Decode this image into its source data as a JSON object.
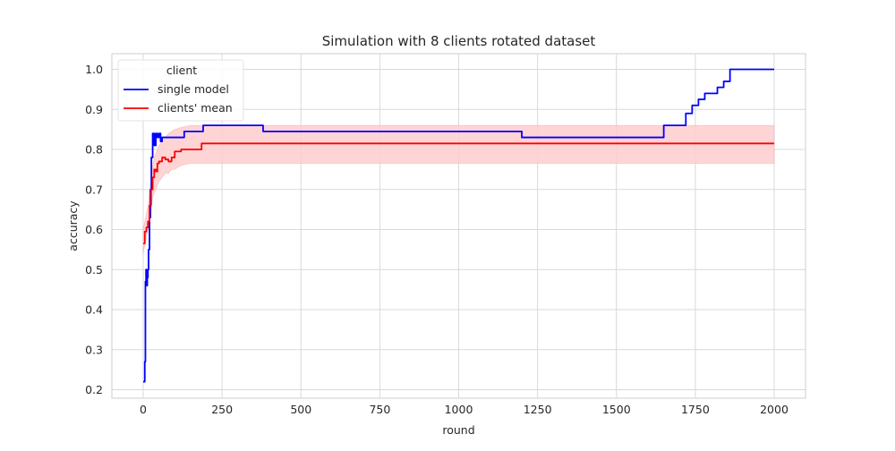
{
  "chart_data": {
    "type": "line",
    "title": "Simulation with 8 clients rotated dataset",
    "xlabel": "round",
    "ylabel": "accuracy",
    "xlim": [
      -50,
      2000
    ],
    "ylim": [
      0.2,
      1.0
    ],
    "xticks": [
      0,
      250,
      500,
      750,
      1000,
      1250,
      1500,
      1750,
      2000
    ],
    "yticks": [
      0.2,
      0.3,
      0.4,
      0.5,
      0.6,
      0.7,
      0.8,
      0.9,
      1.0
    ],
    "xtick_labels": [
      "0",
      "250",
      "500",
      "750",
      "1000",
      "1250",
      "1500",
      "1750",
      "2000"
    ],
    "ytick_labels": [
      "0.2",
      "0.3",
      "0.4",
      "0.5",
      "0.6",
      "0.7",
      "0.8",
      "0.9",
      "1.0"
    ],
    "grid": true,
    "legend": {
      "title": "client",
      "placement": "top-left"
    },
    "series": [
      {
        "name": "single model",
        "color": "#0000ff",
        "x": [
          0,
          5,
          7,
          9,
          11,
          13,
          15,
          17,
          20,
          23,
          26,
          30,
          35,
          40,
          45,
          50,
          55,
          60,
          70,
          80,
          100,
          130,
          160,
          190,
          250,
          300,
          380,
          700,
          900,
          1080,
          1200,
          1400,
          1640,
          1650,
          1700,
          1720,
          1740,
          1760,
          1780,
          1800,
          1820,
          1840,
          1860,
          1900,
          2000
        ],
        "values": [
          0.22,
          0.27,
          0.47,
          0.5,
          0.46,
          0.48,
          0.5,
          0.55,
          0.63,
          0.7,
          0.78,
          0.84,
          0.81,
          0.84,
          0.83,
          0.84,
          0.82,
          0.83,
          0.83,
          0.83,
          0.83,
          0.845,
          0.845,
          0.86,
          0.86,
          0.86,
          0.845,
          0.845,
          0.845,
          0.845,
          0.83,
          0.83,
          0.83,
          0.86,
          0.86,
          0.89,
          0.91,
          0.925,
          0.94,
          0.94,
          0.955,
          0.97,
          1.0,
          1.0,
          1.0
        ]
      },
      {
        "name": "clients' mean",
        "color": "#ff0000",
        "band_color": "#ffcccc",
        "x": [
          0,
          5,
          10,
          15,
          20,
          25,
          30,
          35,
          40,
          45,
          50,
          60,
          70,
          80,
          90,
          100,
          120,
          150,
          185,
          200,
          300,
          500,
          800,
          1000,
          1200,
          1500,
          1750,
          2000
        ],
        "values": [
          0.565,
          0.595,
          0.605,
          0.62,
          0.66,
          0.7,
          0.73,
          0.75,
          0.745,
          0.765,
          0.77,
          0.78,
          0.775,
          0.77,
          0.78,
          0.795,
          0.8,
          0.8,
          0.815,
          0.815,
          0.815,
          0.815,
          0.815,
          0.815,
          0.815,
          0.815,
          0.815,
          0.815
        ],
        "lower": [
          0.54,
          0.56,
          0.58,
          0.6,
          0.62,
          0.65,
          0.68,
          0.69,
          0.7,
          0.71,
          0.72,
          0.73,
          0.74,
          0.74,
          0.75,
          0.75,
          0.76,
          0.765,
          0.765,
          0.765,
          0.765,
          0.765,
          0.765,
          0.765,
          0.765,
          0.765,
          0.765,
          0.765
        ],
        "upper": [
          0.6,
          0.62,
          0.64,
          0.66,
          0.69,
          0.73,
          0.76,
          0.78,
          0.79,
          0.8,
          0.81,
          0.82,
          0.83,
          0.84,
          0.845,
          0.85,
          0.855,
          0.86,
          0.86,
          0.86,
          0.86,
          0.86,
          0.86,
          0.86,
          0.86,
          0.86,
          0.86,
          0.86
        ]
      }
    ]
  }
}
